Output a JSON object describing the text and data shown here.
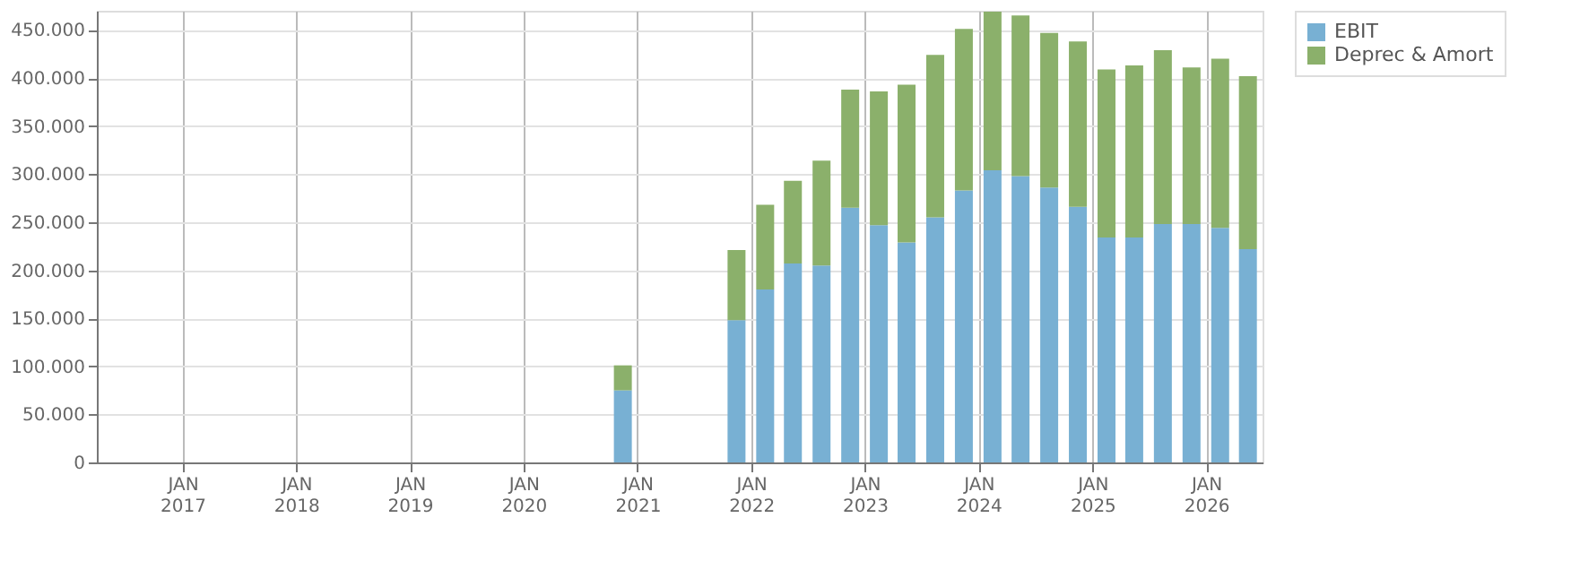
{
  "chart_data": {
    "type": "bar",
    "stacked": true,
    "x": [
      "2020-11-15",
      "2021-11-15",
      "2022-02-15",
      "2022-05-15",
      "2022-08-15",
      "2022-11-15",
      "2023-02-15",
      "2023-05-15",
      "2023-08-15",
      "2023-11-15",
      "2024-02-15",
      "2024-05-15",
      "2024-08-15",
      "2024-11-15",
      "2025-02-15",
      "2025-05-15",
      "2025-08-15",
      "2025-11-15",
      "2026-02-15",
      "2026-05-15"
    ],
    "series": [
      {
        "name": "EBIT",
        "color": "#78b0d3",
        "values": [
          75000,
          148000,
          180000,
          207000,
          205000,
          265000,
          247000,
          229000,
          255000,
          283000,
          304000,
          298000,
          286000,
          266000,
          234000,
          234000,
          248000,
          248000,
          244000,
          222000
        ]
      },
      {
        "name": "Deprec & Amort",
        "color": "#8bb06b",
        "values": [
          26000,
          73000,
          88000,
          86000,
          109000,
          123000,
          139000,
          164000,
          169000,
          168000,
          165000,
          167000,
          161000,
          172000,
          175000,
          179000,
          181000,
          163000,
          176000,
          180000
        ]
      }
    ],
    "xlim": [
      "2016-04-01",
      "2026-07-01"
    ],
    "xticks": [
      {
        "value": "2017-01-01",
        "label": "JAN 2017"
      },
      {
        "value": "2018-01-01",
        "label": "JAN 2018"
      },
      {
        "value": "2019-01-01",
        "label": "JAN 2019"
      },
      {
        "value": "2020-01-01",
        "label": "JAN 2020"
      },
      {
        "value": "2021-01-01",
        "label": "JAN 2021"
      },
      {
        "value": "2022-01-01",
        "label": "JAN 2022"
      },
      {
        "value": "2023-01-01",
        "label": "JAN 2023"
      },
      {
        "value": "2024-01-01",
        "label": "JAN 2024"
      },
      {
        "value": "2025-01-01",
        "label": "JAN 2025"
      },
      {
        "value": "2026-01-01",
        "label": "JAN 2026"
      }
    ],
    "ylim": [
      0,
      470000
    ],
    "yticks": [
      0,
      {
        "value": 50000,
        "label": "50.000"
      },
      {
        "value": 100000,
        "label": "100.000"
      },
      {
        "value": 150000,
        "label": "150.000"
      },
      {
        "value": 200000,
        "label": "200.000"
      },
      {
        "value": 250000,
        "label": "250.000"
      },
      {
        "value": 300000,
        "label": "300.000"
      },
      {
        "value": 350000,
        "label": "350.000"
      },
      {
        "value": 400000,
        "label": "400.000"
      },
      {
        "value": 450000,
        "label": "450.000"
      }
    ],
    "grid": true,
    "legend": "top right"
  }
}
